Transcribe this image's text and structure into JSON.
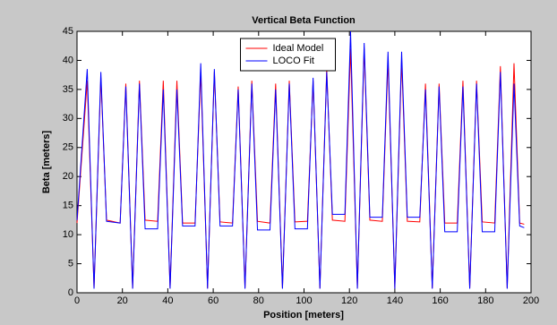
{
  "chart_data": {
    "type": "line",
    "title": "Vertical Beta Function",
    "x_label": "Position [meters]",
    "y_label": "Beta [meters]",
    "x": [
      0,
      4.5,
      7.5,
      10.5,
      13,
      19,
      21.5,
      24.5,
      27.5,
      30,
      35.5,
      38,
      41,
      44,
      46.5,
      52,
      54.5,
      57.5,
      60.5,
      63,
      68.5,
      71,
      74,
      77,
      79.5,
      85,
      87.5,
      90.5,
      93.5,
      96,
      101.5,
      104,
      107,
      110,
      112.5,
      118,
      120.5,
      123.5,
      126.5,
      129,
      134.5,
      137,
      140,
      143,
      145.5,
      151,
      153.5,
      156.5,
      159.5,
      162,
      167.5,
      170,
      173,
      176,
      178.5,
      184,
      186.5,
      189.5,
      192.5,
      195,
      197
    ],
    "series": [
      {
        "name": "Ideal Model",
        "color": "#ff0000",
        "values": [
          12,
          36.5,
          0.8,
          37,
          12.5,
          12,
          36,
          0.8,
          36.5,
          12.5,
          12.3,
          36.5,
          0.8,
          36.5,
          12,
          12,
          38,
          0.8,
          38,
          12.2,
          12,
          35.5,
          0.8,
          36.5,
          12.3,
          12,
          36,
          0.8,
          36.5,
          12.2,
          12.3,
          36.5,
          0.8,
          38.5,
          12.5,
          12.3,
          42,
          0.8,
          42,
          12.5,
          12.3,
          40,
          0.8,
          40,
          12.3,
          12.2,
          36,
          0.8,
          36,
          12,
          12,
          36.5,
          0.8,
          36.5,
          12.2,
          12,
          39,
          0.8,
          39.5,
          12,
          11.8
        ]
      },
      {
        "name": "LOCO Fit",
        "color": "#0000ff",
        "values": [
          12.5,
          38.5,
          0.7,
          38,
          12.3,
          12,
          35.5,
          0.7,
          36,
          11,
          11,
          35,
          0.7,
          35,
          11.5,
          11.5,
          39.5,
          0.7,
          38.5,
          11.5,
          11.5,
          35,
          0.7,
          36,
          10.8,
          10.8,
          35,
          0.7,
          36,
          11,
          11,
          37,
          0.7,
          38,
          13.5,
          13.5,
          45,
          0.7,
          43,
          13,
          13,
          41.5,
          0.7,
          41.5,
          13,
          13,
          35,
          0.7,
          35.5,
          10.5,
          10.5,
          35.5,
          0.7,
          36,
          10.5,
          10.5,
          38,
          0.7,
          36,
          11.5,
          11.2
        ]
      }
    ],
    "xlim": [
      0,
      200
    ],
    "xticks": [
      0,
      20,
      40,
      60,
      80,
      100,
      120,
      140,
      160,
      180,
      200
    ],
    "ylim": [
      0,
      45
    ],
    "yticks": [
      0,
      5,
      10,
      15,
      20,
      25,
      30,
      35,
      40,
      45
    ],
    "grid": false,
    "legend_position": "top"
  }
}
